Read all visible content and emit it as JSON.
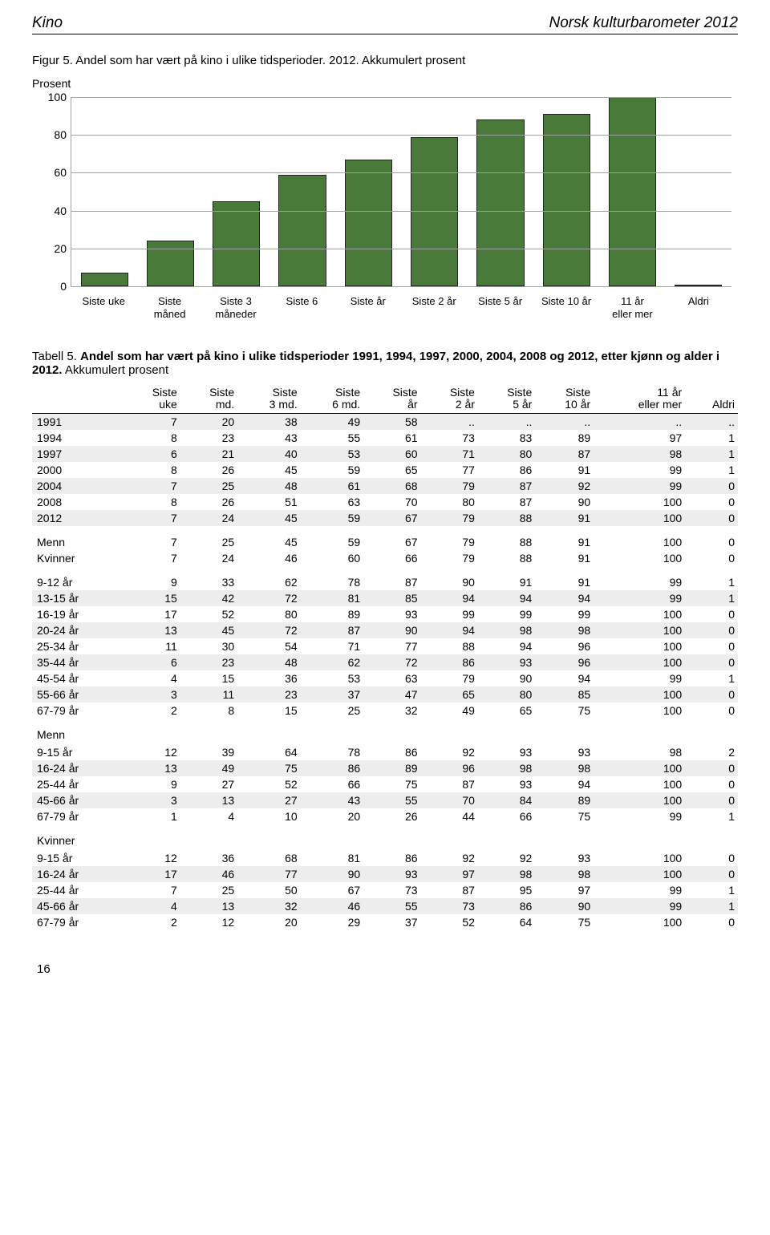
{
  "header": {
    "left": "Kino",
    "right": "Norsk kulturbarometer 2012"
  },
  "figure": {
    "title": "Figur 5. Andel som har vært på kino i ulike tidsperioder. 2012. Akkumulert prosent",
    "subtitle": "Prosent",
    "type": "bar",
    "ylim": [
      0,
      100
    ],
    "ytick_step": 20,
    "bar_color": "#4a7a3a",
    "bar_border": "#222222",
    "grid_color": "#a0a0a0",
    "background_color": "#ffffff",
    "categories": [
      "Siste uke",
      "Siste\nmåned",
      "Siste 3\nmåneder",
      "Siste 6",
      "Siste år",
      "Siste 2 år",
      "Siste 5 år",
      "Siste 10 år",
      "11 år\neller mer",
      "Aldri"
    ],
    "values": [
      7,
      24,
      45,
      59,
      67,
      79,
      88,
      91,
      100,
      0.2
    ]
  },
  "table": {
    "title_prefix": "Tabell 5. ",
    "title_bold": "Andel som har vært på kino i ulike tidsperioder 1991, 1994, 1997, 2000, 2004, 2008 og 2012, etter kjønn og alder i 2012.",
    "title_suffix": " Akkumulert prosent",
    "columns": [
      "",
      "Siste\nuke",
      "Siste\nmd.",
      "Siste\n3 md.",
      "Siste\n6 md.",
      "Siste\når",
      "Siste\n2 år",
      "Siste\n5 år",
      "Siste\n10 år",
      "11 år\neller mer",
      "Aldri"
    ],
    "rows_years": [
      {
        "label": "1991",
        "cells": [
          "7",
          "20",
          "38",
          "49",
          "58",
          "..",
          "..",
          "..",
          "..",
          ".."
        ],
        "band": true
      },
      {
        "label": "1994",
        "cells": [
          "8",
          "23",
          "43",
          "55",
          "61",
          "73",
          "83",
          "89",
          "97",
          "1"
        ],
        "band": false
      },
      {
        "label": "1997",
        "cells": [
          "6",
          "21",
          "40",
          "53",
          "60",
          "71",
          "80",
          "87",
          "98",
          "1"
        ],
        "band": true
      },
      {
        "label": "2000",
        "cells": [
          "8",
          "26",
          "45",
          "59",
          "65",
          "77",
          "86",
          "91",
          "99",
          "1"
        ],
        "band": false
      },
      {
        "label": "2004",
        "cells": [
          "7",
          "25",
          "48",
          "61",
          "68",
          "79",
          "87",
          "92",
          "99",
          "0"
        ],
        "band": true
      },
      {
        "label": "2008",
        "cells": [
          "8",
          "26",
          "51",
          "63",
          "70",
          "80",
          "87",
          "90",
          "100",
          "0"
        ],
        "band": false
      },
      {
        "label": "2012",
        "cells": [
          "7",
          "24",
          "45",
          "59",
          "67",
          "79",
          "88",
          "91",
          "100",
          "0"
        ],
        "band": true
      }
    ],
    "rows_gender": [
      {
        "label": "Menn",
        "cells": [
          "7",
          "25",
          "45",
          "59",
          "67",
          "79",
          "88",
          "91",
          "100",
          "0"
        ],
        "band": false
      },
      {
        "label": "Kvinner",
        "cells": [
          "7",
          "24",
          "46",
          "60",
          "66",
          "79",
          "88",
          "91",
          "100",
          "0"
        ],
        "band": false
      }
    ],
    "rows_age_all": [
      {
        "label": "9-12 år",
        "cells": [
          "9",
          "33",
          "62",
          "78",
          "87",
          "90",
          "91",
          "91",
          "99",
          "1"
        ],
        "band": false
      },
      {
        "label": "13-15 år",
        "cells": [
          "15",
          "42",
          "72",
          "81",
          "85",
          "94",
          "94",
          "94",
          "99",
          "1"
        ],
        "band": true
      },
      {
        "label": "16-19 år",
        "cells": [
          "17",
          "52",
          "80",
          "89",
          "93",
          "99",
          "99",
          "99",
          "100",
          "0"
        ],
        "band": false
      },
      {
        "label": "20-24 år",
        "cells": [
          "13",
          "45",
          "72",
          "87",
          "90",
          "94",
          "98",
          "98",
          "100",
          "0"
        ],
        "band": true
      },
      {
        "label": "25-34 år",
        "cells": [
          "11",
          "30",
          "54",
          "71",
          "77",
          "88",
          "94",
          "96",
          "100",
          "0"
        ],
        "band": false
      },
      {
        "label": "35-44 år",
        "cells": [
          "6",
          "23",
          "48",
          "62",
          "72",
          "86",
          "93",
          "96",
          "100",
          "0"
        ],
        "band": true
      },
      {
        "label": "45-54 år",
        "cells": [
          "4",
          "15",
          "36",
          "53",
          "63",
          "79",
          "90",
          "94",
          "99",
          "1"
        ],
        "band": false
      },
      {
        "label": "55-66 år",
        "cells": [
          "3",
          "11",
          "23",
          "37",
          "47",
          "65",
          "80",
          "85",
          "100",
          "0"
        ],
        "band": true
      },
      {
        "label": "67-79 år",
        "cells": [
          "2",
          "8",
          "15",
          "25",
          "32",
          "49",
          "65",
          "75",
          "100",
          "0"
        ],
        "band": false
      }
    ],
    "section_menn": "Menn",
    "rows_age_menn": [
      {
        "label": "9-15 år",
        "cells": [
          "12",
          "39",
          "64",
          "78",
          "86",
          "92",
          "93",
          "93",
          "98",
          "2"
        ],
        "band": false
      },
      {
        "label": "16-24 år",
        "cells": [
          "13",
          "49",
          "75",
          "86",
          "89",
          "96",
          "98",
          "98",
          "100",
          "0"
        ],
        "band": true
      },
      {
        "label": "25-44 år",
        "cells": [
          "9",
          "27",
          "52",
          "66",
          "75",
          "87",
          "93",
          "94",
          "100",
          "0"
        ],
        "band": false
      },
      {
        "label": "45-66 år",
        "cells": [
          "3",
          "13",
          "27",
          "43",
          "55",
          "70",
          "84",
          "89",
          "100",
          "0"
        ],
        "band": true
      },
      {
        "label": "67-79 år",
        "cells": [
          "1",
          "4",
          "10",
          "20",
          "26",
          "44",
          "66",
          "75",
          "99",
          "1"
        ],
        "band": false
      }
    ],
    "section_kvinner": "Kvinner",
    "rows_age_kvinner": [
      {
        "label": "9-15 år",
        "cells": [
          "12",
          "36",
          "68",
          "81",
          "86",
          "92",
          "92",
          "93",
          "100",
          "0"
        ],
        "band": false
      },
      {
        "label": "16-24 år",
        "cells": [
          "17",
          "46",
          "77",
          "90",
          "93",
          "97",
          "98",
          "98",
          "100",
          "0"
        ],
        "band": true
      },
      {
        "label": "25-44 år",
        "cells": [
          "7",
          "25",
          "50",
          "67",
          "73",
          "87",
          "95",
          "97",
          "99",
          "1"
        ],
        "band": false
      },
      {
        "label": "45-66 år",
        "cells": [
          "4",
          "13",
          "32",
          "46",
          "55",
          "73",
          "86",
          "90",
          "99",
          "1"
        ],
        "band": true
      },
      {
        "label": "67-79 år",
        "cells": [
          "2",
          "12",
          "20",
          "29",
          "37",
          "52",
          "64",
          "75",
          "100",
          "0"
        ],
        "band": false
      }
    ]
  },
  "footer": "16"
}
